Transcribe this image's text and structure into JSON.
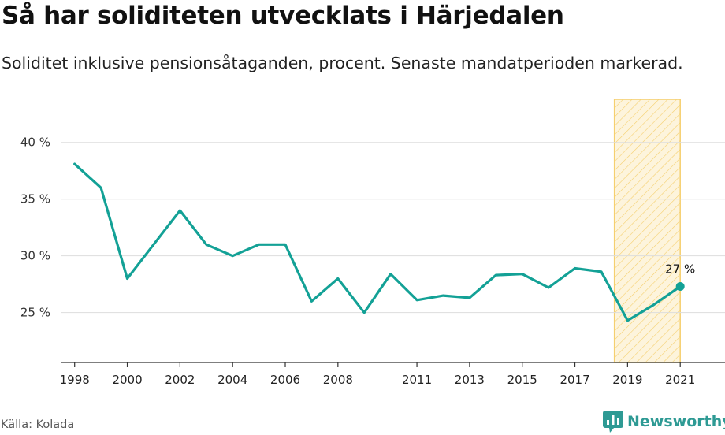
{
  "header": {
    "title": "Så har soliditeten utvecklats i Härjedalen",
    "subtitle": "Soliditet inklusive pensionsåtaganden, procent. Senaste mandatperioden markerad."
  },
  "footer": {
    "source": "Källa: Kolada",
    "brand": "Newsworthy",
    "brand_icon": "newsworthy-logo-icon"
  },
  "colors": {
    "line": "#13a196",
    "highlight_stroke": "#f5cf6e",
    "highlight_fill": "#fdf4dc",
    "grid": "#dddddd",
    "brand": "#2e9a94"
  },
  "chart_data": {
    "type": "line",
    "title": "Så har soliditeten utvecklats i Härjedalen",
    "subtitle": "Soliditet inklusive pensionsåtaganden, procent. Senaste mandatperioden markerad.",
    "xlabel": "",
    "ylabel": "",
    "x": [
      1998,
      1999,
      2000,
      2001,
      2002,
      2003,
      2004,
      2005,
      2006,
      2007,
      2008,
      2009,
      2010,
      2011,
      2012,
      2013,
      2014,
      2015,
      2016,
      2017,
      2018,
      2019,
      2020,
      2021
    ],
    "series": [
      {
        "values": [
          38.1,
          36.0,
          28.0,
          31.0,
          34.0,
          31.0,
          30.0,
          31.0,
          31.0,
          26.0,
          28.0,
          25.0,
          28.4,
          26.1,
          26.5,
          26.3,
          28.3,
          28.4,
          27.2,
          28.9,
          28.6,
          24.3,
          25.7,
          27.3
        ]
      }
    ],
    "xticks": [
      "1998",
      "2000",
      "2002",
      "2004",
      "2006",
      "2008",
      "2011",
      "2013",
      "2015",
      "2017",
      "2019",
      "2021"
    ],
    "yticks": [
      {
        "value": 25,
        "label": "25 %"
      },
      {
        "value": 30,
        "label": "30 %"
      },
      {
        "value": 35,
        "label": "35 %"
      },
      {
        "value": 40,
        "label": "40 %"
      }
    ],
    "xlim": [
      1997.5,
      2022.7
    ],
    "ylim": [
      20.6,
      43.8
    ],
    "highlight_range": [
      2018.5,
      2021
    ],
    "end_label": "27 %",
    "grid": true,
    "legend": "none"
  }
}
